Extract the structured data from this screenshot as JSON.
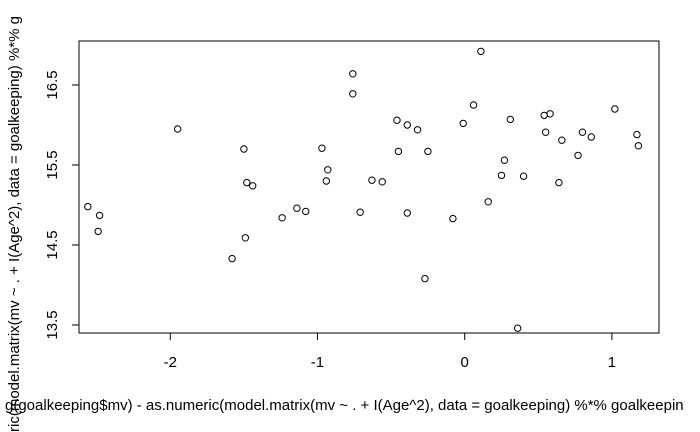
{
  "chart_data": {
    "type": "scatter",
    "xlabel": "g(goalkeeping$mv) - as.numeric(model.matrix(mv ~ . + I(Age^2), data = goalkeeping) %*% goalkeepin",
    "ylabel": "ric(model.matrix(mv ~ . + I(Age^2), data = goalkeeping) %*% g",
    "xlim": [
      -2.62,
      1.32
    ],
    "ylim": [
      13.4,
      17.05
    ],
    "xticks": [
      {
        "value": -2,
        "label": "-2"
      },
      {
        "value": -1,
        "label": "-1"
      },
      {
        "value": 0,
        "label": "0"
      },
      {
        "value": 1,
        "label": "1"
      }
    ],
    "yticks": [
      {
        "value": 13.5,
        "label": "13.5"
      },
      {
        "value": 14.5,
        "label": "14.5"
      },
      {
        "value": 15.5,
        "label": "15.5"
      },
      {
        "value": 16.5,
        "label": "16.5"
      }
    ],
    "grid": false,
    "points": [
      {
        "x": -2.56,
        "y": 14.98
      },
      {
        "x": -2.48,
        "y": 14.87
      },
      {
        "x": -2.49,
        "y": 14.67
      },
      {
        "x": -1.95,
        "y": 15.95
      },
      {
        "x": -1.58,
        "y": 14.33
      },
      {
        "x": -1.5,
        "y": 15.7
      },
      {
        "x": -1.48,
        "y": 15.28
      },
      {
        "x": -1.44,
        "y": 15.24
      },
      {
        "x": -1.49,
        "y": 14.59
      },
      {
        "x": -1.24,
        "y": 14.84
      },
      {
        "x": -1.14,
        "y": 14.96
      },
      {
        "x": -1.08,
        "y": 14.92
      },
      {
        "x": -0.97,
        "y": 15.71
      },
      {
        "x": -0.93,
        "y": 15.44
      },
      {
        "x": -0.94,
        "y": 15.3
      },
      {
        "x": -0.76,
        "y": 16.64
      },
      {
        "x": -0.76,
        "y": 16.39
      },
      {
        "x": -0.71,
        "y": 14.91
      },
      {
        "x": -0.63,
        "y": 15.31
      },
      {
        "x": -0.56,
        "y": 15.29
      },
      {
        "x": -0.46,
        "y": 16.06
      },
      {
        "x": -0.45,
        "y": 15.67
      },
      {
        "x": -0.39,
        "y": 16.0
      },
      {
        "x": -0.39,
        "y": 14.9
      },
      {
        "x": -0.32,
        "y": 15.94
      },
      {
        "x": -0.25,
        "y": 15.67
      },
      {
        "x": -0.27,
        "y": 14.08
      },
      {
        "x": -0.08,
        "y": 14.83
      },
      {
        "x": -0.01,
        "y": 16.02
      },
      {
        "x": 0.06,
        "y": 16.25
      },
      {
        "x": 0.11,
        "y": 16.92
      },
      {
        "x": 0.16,
        "y": 15.04
      },
      {
        "x": 0.25,
        "y": 15.37
      },
      {
        "x": 0.27,
        "y": 15.56
      },
      {
        "x": 0.31,
        "y": 16.07
      },
      {
        "x": 0.36,
        "y": 13.46
      },
      {
        "x": 0.4,
        "y": 15.36
      },
      {
        "x": 0.54,
        "y": 16.12
      },
      {
        "x": 0.55,
        "y": 15.91
      },
      {
        "x": 0.58,
        "y": 16.14
      },
      {
        "x": 0.64,
        "y": 15.28
      },
      {
        "x": 0.66,
        "y": 15.81
      },
      {
        "x": 0.77,
        "y": 15.62
      },
      {
        "x": 0.8,
        "y": 15.91
      },
      {
        "x": 0.86,
        "y": 15.85
      },
      {
        "x": 1.02,
        "y": 16.2
      },
      {
        "x": 1.17,
        "y": 15.88
      },
      {
        "x": 1.18,
        "y": 15.74
      }
    ]
  }
}
